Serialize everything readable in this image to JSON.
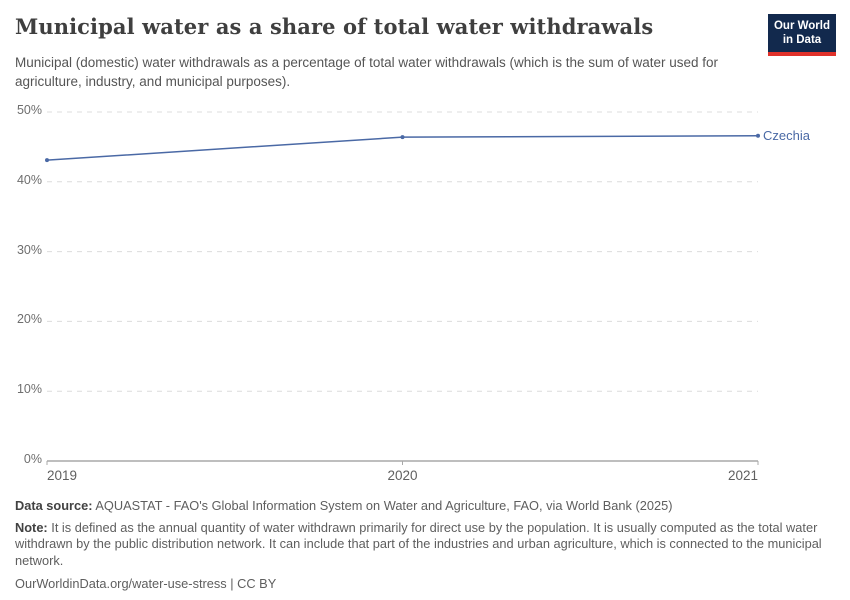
{
  "header": {
    "title": "Municipal water as a share of total water withdrawals",
    "subtitle": "Municipal (domestic) water withdrawals as a percentage of total water withdrawals (which is the sum of water used for agriculture, industry, and municipal purposes).",
    "logo": {
      "line1": "Our World",
      "line2": "in Data",
      "bg_color": "#12294d",
      "accent_color": "#e0312a"
    }
  },
  "chart_data": {
    "type": "line",
    "x": [
      2019,
      2020,
      2021
    ],
    "xtick_labels": [
      "2019",
      "2020",
      "2021"
    ],
    "series": [
      {
        "name": "Czechia",
        "values": [
          43.1,
          46.4,
          46.6
        ],
        "color": "#4a69a5"
      }
    ],
    "ylim": [
      0,
      50
    ],
    "yticks": [
      {
        "value": 0,
        "label": "0%"
      },
      {
        "value": 10,
        "label": "10%"
      },
      {
        "value": 20,
        "label": "20%"
      },
      {
        "value": 30,
        "label": "30%"
      },
      {
        "value": 40,
        "label": "40%"
      },
      {
        "value": 50,
        "label": "50%"
      }
    ],
    "grid": "horizontal-dashed",
    "grid_color": "#dcdcdc",
    "axis_color": "#a8a8a8",
    "legend_position": "right-of-line-end"
  },
  "footer": {
    "data_source_label": "Data source:",
    "data_source_text": " AQUASTAT - FAO's Global Information System on Water and Agriculture, FAO, via World Bank (2025)",
    "note_label": "Note:",
    "note_text": " It is defined as the annual quantity of water withdrawn primarily for direct use by the population. It is usually computed as the total water withdrawn by the public distribution network. It can include that part of the industries and urban agriculture, which is connected to the municipal network.",
    "citation": "OurWorldinData.org/water-use-stress | CC BY"
  }
}
